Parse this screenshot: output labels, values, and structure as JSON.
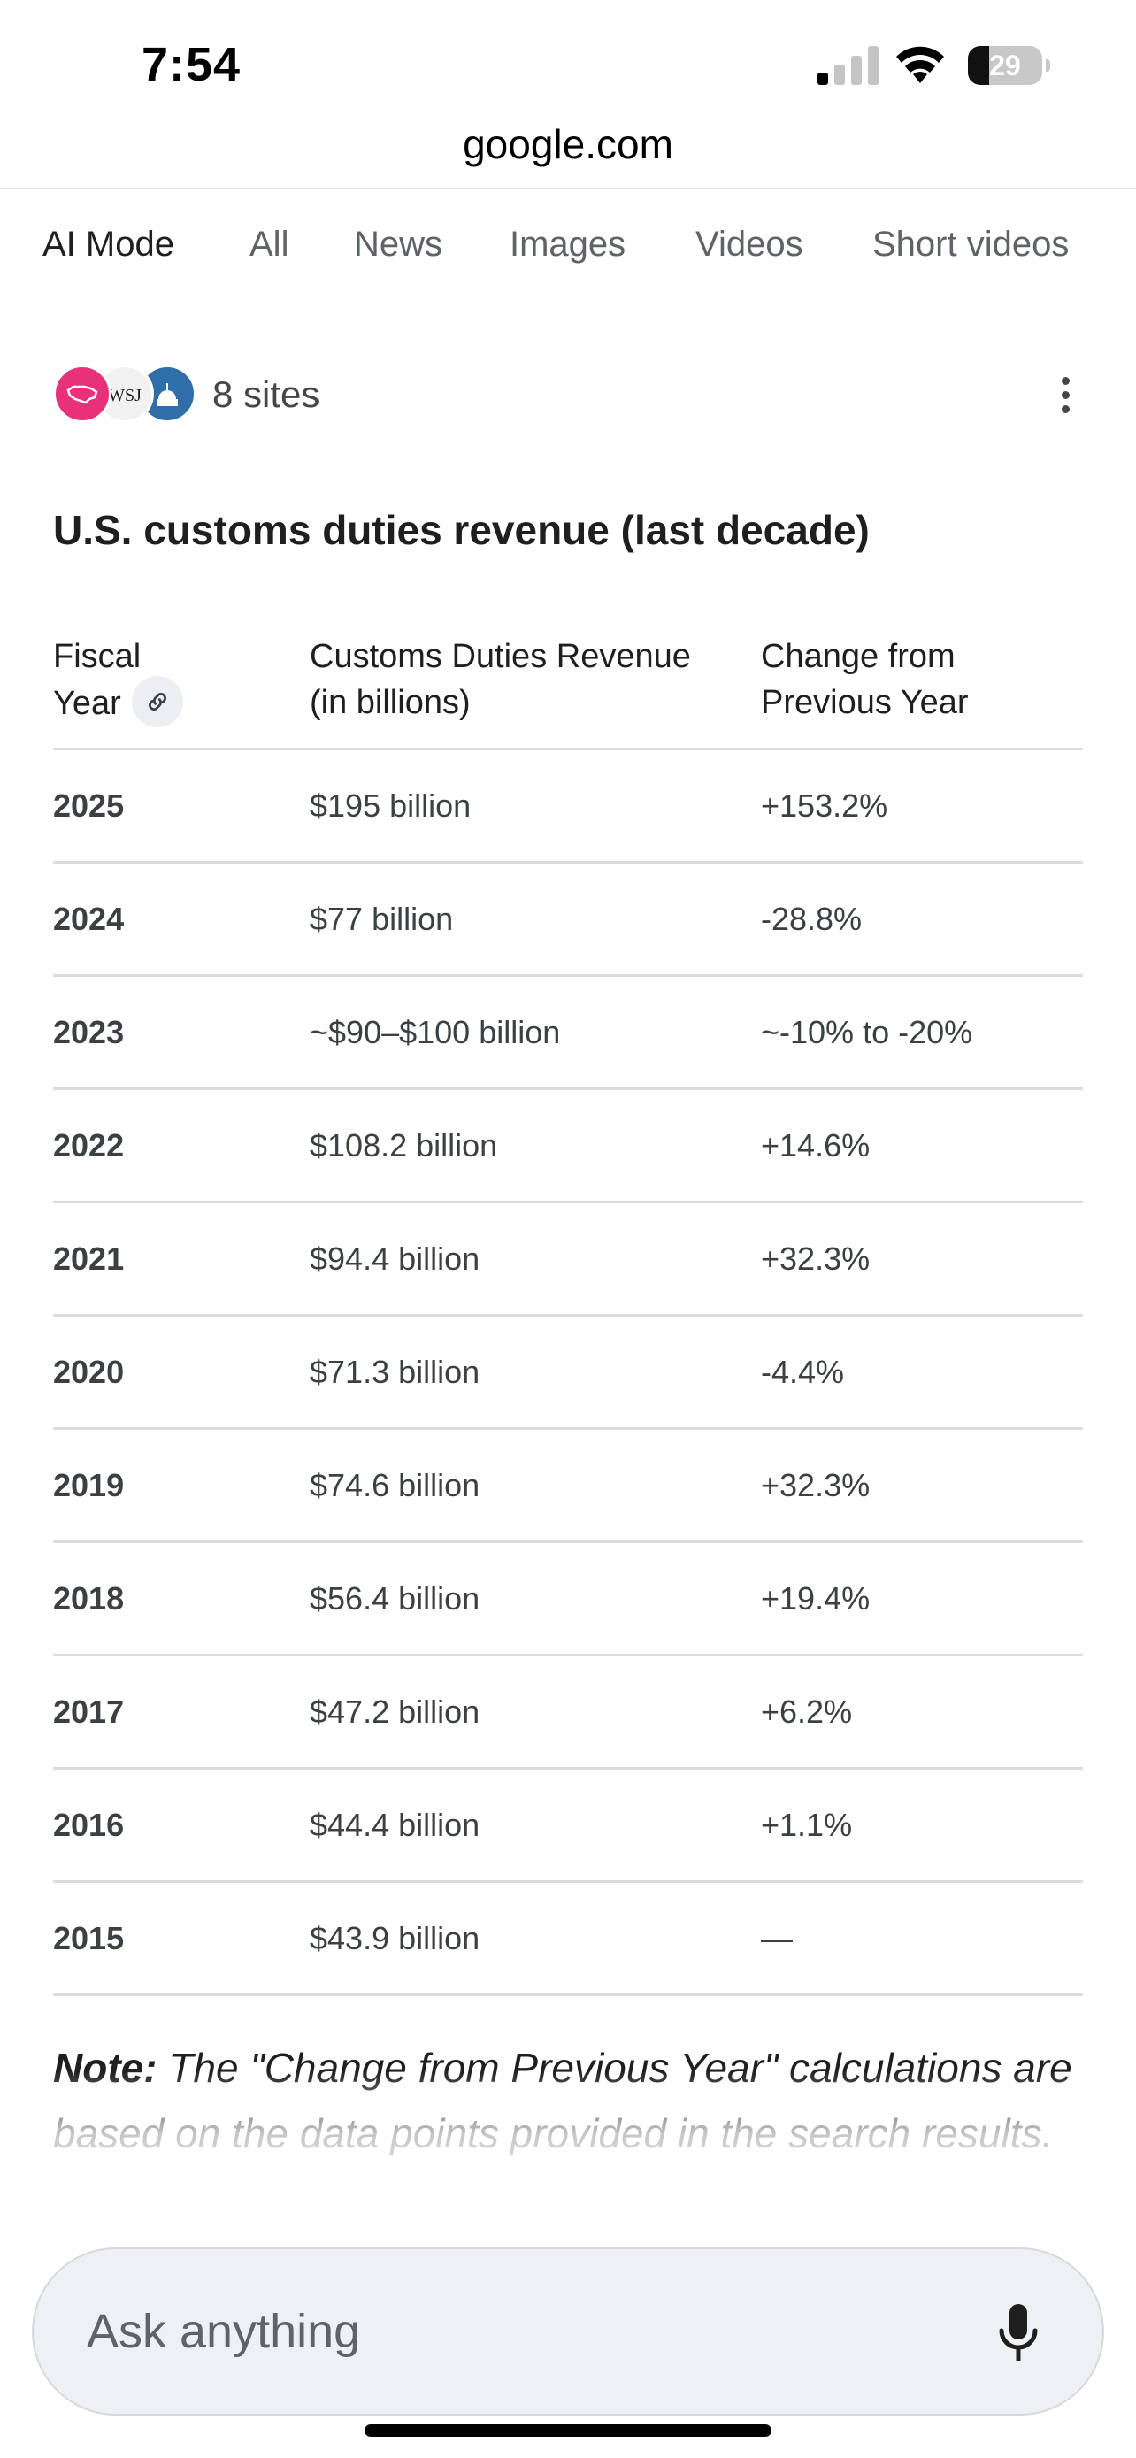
{
  "status_bar": {
    "time": "7:54",
    "battery": "29",
    "battery_level": 0.29
  },
  "browser": {
    "url": "google.com"
  },
  "tabs": [
    {
      "label": "AI Mode",
      "active": true
    },
    {
      "label": "All"
    },
    {
      "label": "News"
    },
    {
      "label": "Images"
    },
    {
      "label": "Videos"
    },
    {
      "label": "Short videos"
    }
  ],
  "sources": {
    "label": "8 sites",
    "logo_text": "WSJ"
  },
  "heading": "U.S. customs duties revenue (last decade)",
  "table": {
    "headers": {
      "year_line1": "Fiscal",
      "year_line2": "Year",
      "revenue_line1": "Customs Duties Revenue",
      "revenue_line2": "(in billions)",
      "change_line1": "Change from",
      "change_line2": "Previous Year"
    },
    "rows": [
      {
        "year": "2025",
        "revenue": "$195 billion",
        "change": "+153.2%"
      },
      {
        "year": "2024",
        "revenue": "$77 billion",
        "change": "-28.8%"
      },
      {
        "year": "2023",
        "revenue": "~$90–$100 billion",
        "change": "~-10% to -20%"
      },
      {
        "year": "2022",
        "revenue": "$108.2 billion",
        "change": "+14.6%"
      },
      {
        "year": "2021",
        "revenue": "$94.4 billion",
        "change": "+32.3%"
      },
      {
        "year": "2020",
        "revenue": "$71.3 billion",
        "change": "-4.4%"
      },
      {
        "year": "2019",
        "revenue": "$74.6 billion",
        "change": "+32.3%"
      },
      {
        "year": "2018",
        "revenue": "$56.4 billion",
        "change": "+19.4%"
      },
      {
        "year": "2017",
        "revenue": "$47.2 billion",
        "change": "+6.2%"
      },
      {
        "year": "2016",
        "revenue": "$44.4 billion",
        "change": "+1.1%"
      },
      {
        "year": "2015",
        "revenue": "$43.9 billion",
        "change": "—"
      }
    ]
  },
  "note": {
    "label": "Note:",
    "text": " The \"Change from Previous Year\" calculations are based on the data points provided in the search results."
  },
  "ask_bar": {
    "placeholder": "Ask anything"
  },
  "icons": {
    "link": "link-icon",
    "more": "more-vert-icon",
    "mic": "mic-icon",
    "signal": "cellular-signal-icon",
    "wifi": "wifi-icon",
    "battery": "battery-icon"
  }
}
